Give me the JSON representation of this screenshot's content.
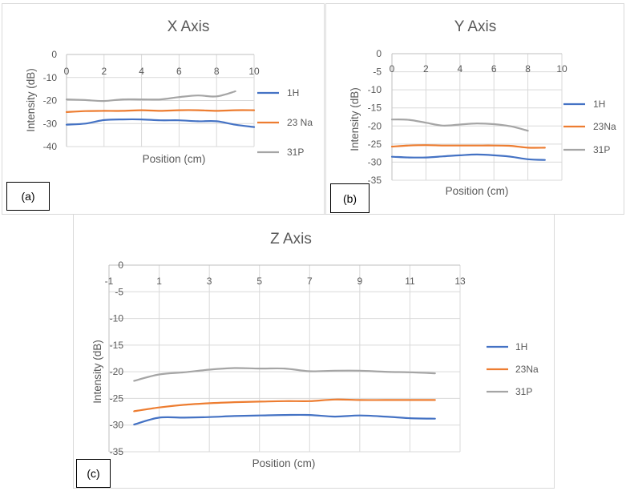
{
  "colors": {
    "1H": "#4472c4",
    "23Na": "#ed7d31",
    "31P": "#a5a5a5"
  },
  "chart_data": [
    {
      "type": "line",
      "panel_tag": "(a)",
      "title": "X Axis",
      "xlabel": "Position (cm)",
      "ylabel": "Intensity (dB)",
      "xlim": [
        0,
        10
      ],
      "ylim": [
        -40,
        0
      ],
      "xticks": [
        0,
        2,
        4,
        6,
        8,
        10
      ],
      "yticks": [
        0,
        -10,
        -20,
        -30,
        -40
      ],
      "legend": [
        "1H",
        "23 Na",
        "31P"
      ],
      "series": [
        {
          "name": "1H",
          "x": [
            0,
            1,
            2,
            3,
            4,
            5,
            6,
            7,
            8,
            9,
            10
          ],
          "values": [
            -30.5,
            -30,
            -28.5,
            -28.2,
            -28.2,
            -28.6,
            -28.6,
            -29,
            -29,
            -30.5,
            -31.5
          ]
        },
        {
          "name": "23 Na",
          "x": [
            0,
            1,
            2,
            3,
            4,
            5,
            6,
            7,
            8,
            9,
            10
          ],
          "values": [
            -25,
            -24.6,
            -24.5,
            -24.5,
            -24.2,
            -24.5,
            -24.2,
            -24.2,
            -24.5,
            -24.2,
            -24.2
          ]
        },
        {
          "name": "31P",
          "x": [
            0,
            1,
            2,
            3,
            4,
            5,
            6,
            7,
            8,
            9
          ],
          "values": [
            -19.5,
            -19.8,
            -20.2,
            -19.5,
            -19.5,
            -19.5,
            -18.5,
            -17.8,
            -18.2,
            -16
          ]
        }
      ]
    },
    {
      "type": "line",
      "panel_tag": "(b)",
      "title": "Y Axis",
      "xlabel": "Position (cm)",
      "ylabel": "Intensity (dB)",
      "xlim": [
        0,
        10
      ],
      "ylim": [
        -35,
        0
      ],
      "xticks": [
        0,
        2,
        4,
        6,
        8,
        10
      ],
      "yticks": [
        0,
        -5,
        -10,
        -15,
        -20,
        -25,
        -30,
        -35
      ],
      "legend": [
        "1H",
        "23Na",
        "31P"
      ],
      "series": [
        {
          "name": "1H",
          "x": [
            0,
            1,
            2,
            3,
            4,
            5,
            6,
            7,
            8,
            9
          ],
          "values": [
            -28.5,
            -28.7,
            -28.7,
            -28.4,
            -28.1,
            -27.9,
            -28.1,
            -28.5,
            -29.2,
            -29.4
          ]
        },
        {
          "name": "23Na",
          "x": [
            0,
            1,
            2,
            3,
            4,
            5,
            6,
            7,
            8,
            9
          ],
          "values": [
            -25.7,
            -25.4,
            -25.3,
            -25.4,
            -25.4,
            -25.4,
            -25.4,
            -25.5,
            -26,
            -26
          ]
        },
        {
          "name": "31P",
          "x": [
            0,
            1,
            2,
            3,
            4,
            5,
            6,
            7,
            8
          ],
          "values": [
            -18.2,
            -18.3,
            -19.1,
            -19.9,
            -19.6,
            -19.3,
            -19.5,
            -20.1,
            -21.3
          ]
        }
      ]
    },
    {
      "type": "line",
      "panel_tag": "(c)",
      "title": "Z Axis",
      "xlabel": "Position (cm)",
      "ylabel": "Intensity (dB)",
      "xlim": [
        -1,
        13
      ],
      "ylim": [
        -35,
        0
      ],
      "xticks": [
        -1,
        1,
        3,
        5,
        7,
        9,
        11,
        13
      ],
      "yticks": [
        0,
        -5,
        -10,
        -15,
        -20,
        -25,
        -30,
        -35
      ],
      "legend": [
        "1H",
        "23Na",
        "31P"
      ],
      "series": [
        {
          "name": "1H",
          "x": [
            0,
            1,
            2,
            3,
            4,
            5,
            6,
            7,
            8,
            9,
            10,
            11,
            12
          ],
          "values": [
            -29.9,
            -28.6,
            -28.6,
            -28.5,
            -28.3,
            -28.2,
            -28.1,
            -28.1,
            -28.4,
            -28.2,
            -28.4,
            -28.7,
            -28.8
          ]
        },
        {
          "name": "23Na",
          "x": [
            0,
            1,
            2,
            3,
            4,
            5,
            6,
            7,
            8,
            9,
            10,
            11,
            12
          ],
          "values": [
            -27.4,
            -26.7,
            -26.2,
            -25.9,
            -25.7,
            -25.6,
            -25.5,
            -25.5,
            -25.2,
            -25.3,
            -25.3,
            -25.3,
            -25.3
          ]
        },
        {
          "name": "31P",
          "x": [
            0,
            1,
            2,
            3,
            4,
            5,
            6,
            7,
            8,
            9,
            10,
            11,
            12
          ],
          "values": [
            -21.7,
            -20.5,
            -20.1,
            -19.6,
            -19.3,
            -19.4,
            -19.4,
            -19.9,
            -19.8,
            -19.8,
            -20,
            -20.1,
            -20.3
          ]
        }
      ]
    }
  ]
}
